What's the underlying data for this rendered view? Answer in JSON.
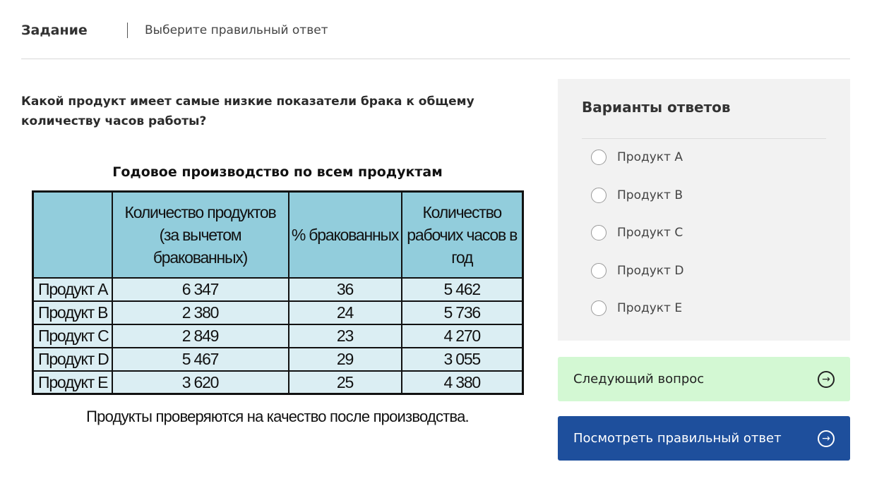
{
  "header": {
    "title": "Задание",
    "subtitle": "Выберите правильный ответ"
  },
  "question": "Какой продукт имеет самые низкие показатели брака к общему количеству часов работы?",
  "table": {
    "title": "Годовое производство по всем продуктам",
    "headers": [
      "",
      "Количество продуктов (за вычетом бракованных)",
      "% бракованных",
      "Количество рабочих часов в год"
    ],
    "rows": [
      [
        "Продукт A",
        "6 347",
        "36",
        "5 462"
      ],
      [
        "Продукт B",
        "2 380",
        "24",
        "5 736"
      ],
      [
        "Продукт C",
        "2 849",
        "23",
        "4 270"
      ],
      [
        "Продукт D",
        "5 467",
        "29",
        "3 055"
      ],
      [
        "Продукт E",
        "3 620",
        "25",
        "4 380"
      ]
    ],
    "caption": "Продукты проверяются на качество после производства."
  },
  "answers": {
    "title": "Варианты ответов",
    "options": [
      "Продукт A",
      "Продукт B",
      "Продукт C",
      "Продукт D",
      "Продукт E"
    ]
  },
  "buttons": {
    "next": "Следующий вопрос",
    "show_answer": "Посмотреть правильный ответ",
    "icon": "arrow-right-circle-icon"
  },
  "colors": {
    "header_cell": "#92cddc",
    "body_cell": "#dbeef3",
    "next_button": "#d3f8d3",
    "answer_button": "#1e4f9c"
  }
}
